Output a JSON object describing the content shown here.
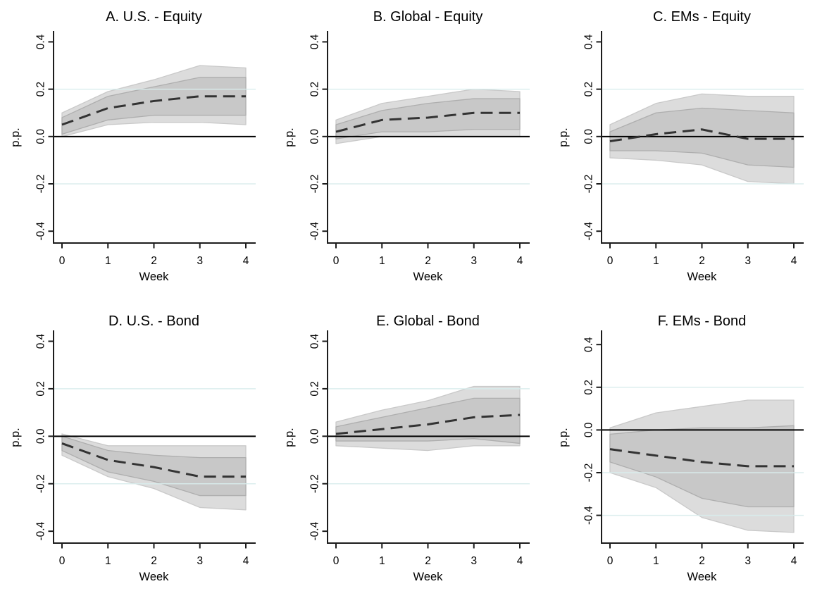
{
  "figure": {
    "kind": "impulse-response-panel-figure",
    "rows": 2,
    "cols": 3,
    "background": "#ffffff"
  },
  "colors": {
    "title_text": "#21386b",
    "tick_text": "#000000",
    "axis": "#1c1c1c",
    "grid": "#d9eded",
    "zero_line": "#000000",
    "point_estimate": "#333333",
    "inner_band_fill": "#c8c8c8",
    "inner_band_border": "#aeaeae",
    "outer_band_fill": "#dcdcdc",
    "outer_band_border": "#c9c9c9"
  },
  "chart_data": [
    {
      "type": "line",
      "title": "A. U.S. - Equity",
      "xlabel": "Week",
      "ylabel": "p.p.",
      "x": [
        0,
        1,
        2,
        3,
        4
      ],
      "mean": [
        0.05,
        0.12,
        0.15,
        0.17,
        0.17
      ],
      "inner_band": {
        "lower": [
          0.01,
          0.07,
          0.09,
          0.09,
          0.09
        ],
        "upper": [
          0.08,
          0.17,
          0.21,
          0.25,
          0.25
        ]
      },
      "outer_band": {
        "lower": [
          0.0,
          0.05,
          0.06,
          0.06,
          0.05
        ],
        "upper": [
          0.1,
          0.19,
          0.24,
          0.3,
          0.29
        ]
      },
      "ylim": [
        -0.45,
        0.44
      ],
      "yticks": [
        0.4,
        0.2,
        0.0,
        -0.2,
        -0.4
      ],
      "xticks": [
        0,
        1,
        2,
        3,
        4
      ],
      "gridlines": [
        0.2,
        -0.2
      ],
      "zero_line": true
    },
    {
      "type": "line",
      "title": "B. Global - Equity",
      "xlabel": "Week",
      "ylabel": "p.p.",
      "x": [
        0,
        1,
        2,
        3,
        4
      ],
      "mean": [
        0.02,
        0.07,
        0.08,
        0.1,
        0.1
      ],
      "inner_band": {
        "lower": [
          -0.01,
          0.02,
          0.02,
          0.03,
          0.03
        ],
        "upper": [
          0.05,
          0.11,
          0.14,
          0.16,
          0.16
        ]
      },
      "outer_band": {
        "lower": [
          -0.03,
          0.0,
          0.0,
          0.0,
          0.0
        ],
        "upper": [
          0.07,
          0.14,
          0.17,
          0.2,
          0.19
        ]
      },
      "ylim": [
        -0.45,
        0.44
      ],
      "yticks": [
        0.4,
        0.2,
        0.0,
        -0.2,
        -0.4
      ],
      "xticks": [
        0,
        1,
        2,
        3,
        4
      ],
      "gridlines": [
        0.2,
        -0.2
      ],
      "zero_line": true
    },
    {
      "type": "line",
      "title": "C. EMs - Equity",
      "xlabel": "Week",
      "ylabel": "p.p.",
      "x": [
        0,
        1,
        2,
        3,
        4
      ],
      "mean": [
        -0.02,
        0.01,
        0.03,
        -0.01,
        -0.01
      ],
      "inner_band": {
        "lower": [
          -0.06,
          -0.06,
          -0.07,
          -0.12,
          -0.13
        ],
        "upper": [
          0.02,
          0.1,
          0.12,
          0.11,
          0.1
        ]
      },
      "outer_band": {
        "lower": [
          -0.09,
          -0.1,
          -0.12,
          -0.19,
          -0.2
        ],
        "upper": [
          0.05,
          0.14,
          0.18,
          0.17,
          0.17
        ]
      },
      "ylim": [
        -0.45,
        0.44
      ],
      "yticks": [
        0.4,
        0.2,
        0.0,
        -0.2,
        -0.4
      ],
      "xticks": [
        0,
        1,
        2,
        3,
        4
      ],
      "gridlines": [
        0.2,
        -0.2
      ],
      "zero_line": true
    },
    {
      "type": "line",
      "title": "D. U.S. - Bond",
      "xlabel": "Week",
      "ylabel": "p.p.",
      "x": [
        0,
        1,
        2,
        3,
        4
      ],
      "mean": [
        -0.03,
        -0.1,
        -0.13,
        -0.17,
        -0.17
      ],
      "inner_band": {
        "lower": [
          -0.06,
          -0.15,
          -0.19,
          -0.25,
          -0.25
        ],
        "upper": [
          0.0,
          -0.06,
          -0.08,
          -0.09,
          -0.09
        ]
      },
      "outer_band": {
        "lower": [
          -0.08,
          -0.17,
          -0.22,
          -0.3,
          -0.31
        ],
        "upper": [
          0.01,
          -0.04,
          -0.04,
          -0.04,
          -0.04
        ]
      },
      "ylim": [
        -0.45,
        0.44
      ],
      "yticks": [
        0.4,
        0.2,
        0.0,
        -0.2,
        -0.4
      ],
      "xticks": [
        0,
        1,
        2,
        3,
        4
      ],
      "gridlines": [
        0.2,
        -0.2
      ],
      "zero_line": true
    },
    {
      "type": "line",
      "title": "E. Global - Bond",
      "xlabel": "Week",
      "ylabel": "p.p.",
      "x": [
        0,
        1,
        2,
        3,
        4
      ],
      "mean": [
        0.01,
        0.03,
        0.05,
        0.08,
        0.09
      ],
      "inner_band": {
        "lower": [
          -0.02,
          -0.02,
          -0.02,
          -0.01,
          -0.03
        ],
        "upper": [
          0.04,
          0.08,
          0.12,
          0.16,
          0.16
        ]
      },
      "outer_band": {
        "lower": [
          -0.04,
          -0.05,
          -0.06,
          -0.04,
          -0.04
        ],
        "upper": [
          0.06,
          0.11,
          0.15,
          0.21,
          0.21
        ]
      },
      "ylim": [
        -0.45,
        0.44
      ],
      "yticks": [
        0.4,
        0.2,
        0.0,
        -0.2,
        -0.4
      ],
      "xticks": [
        0,
        1,
        2,
        3,
        4
      ],
      "gridlines": [
        0.2,
        -0.2
      ],
      "zero_line": true
    },
    {
      "type": "line",
      "title": "F. EMs - Bond",
      "xlabel": "Week",
      "ylabel": "p.p.",
      "x": [
        0,
        1,
        2,
        3,
        4
      ],
      "mean": [
        -0.09,
        -0.12,
        -0.15,
        -0.17,
        -0.17
      ],
      "inner_band": {
        "lower": [
          -0.15,
          -0.22,
          -0.32,
          -0.36,
          -0.36
        ],
        "upper": [
          -0.02,
          0.0,
          0.01,
          0.01,
          0.02
        ]
      },
      "outer_band": {
        "lower": [
          -0.2,
          -0.27,
          -0.41,
          -0.47,
          -0.48
        ],
        "upper": [
          0.01,
          0.08,
          0.11,
          0.14,
          0.14
        ]
      },
      "ylim": [
        -0.53,
        0.46
      ],
      "yticks": [
        0.4,
        0.2,
        0.0,
        -0.2,
        -0.4
      ],
      "xticks": [
        0,
        1,
        2,
        3,
        4
      ],
      "gridlines": [
        0.2,
        -0.2,
        -0.4
      ],
      "zero_line": true
    }
  ]
}
